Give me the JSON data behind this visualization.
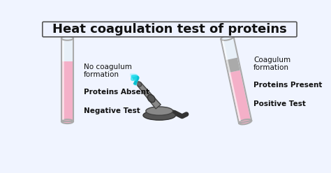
{
  "title": "Heat coagulation test of proteins",
  "title_fontsize": 13,
  "title_fontweight": "bold",
  "bg_color": "#f0f4ff",
  "title_bg": "#eef2ff",
  "border_color": "#555555",
  "left_labels": [
    "No coagulum\nformation",
    "Proteins Absent",
    "Negative Test"
  ],
  "right_labels": [
    "Coagulum\nformation",
    "Proteins Present",
    "Positive Test"
  ],
  "label_fontsize": 7.5,
  "tube_pink": "#f4b0c8",
  "tube_glass": "#e8f0f8",
  "tube_outline": "#aaaaaa",
  "coagulum_color": "#aaaaaa",
  "bunsen_dark": "#555555",
  "bunsen_mid": "#888888",
  "bunsen_light": "#aaaaaa",
  "flame_cyan": "#22ddee",
  "flame_tip": "#88eeff"
}
